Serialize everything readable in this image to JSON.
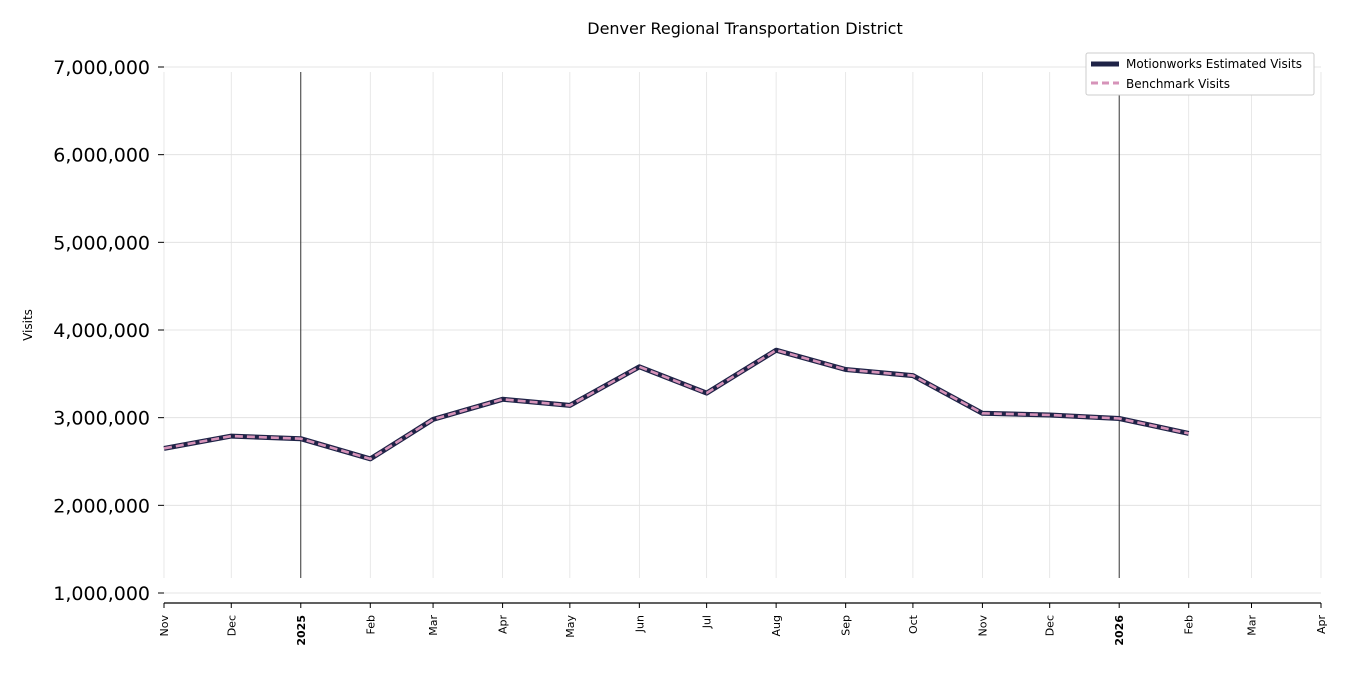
{
  "chart_data": {
    "type": "line",
    "title": "Denver Regional Transportation District",
    "ylabel": "Visits",
    "xlabel": "",
    "ylim": [
      1000000,
      7000000
    ],
    "yticks": [
      "1,000,000",
      "2,000,000",
      "3,000,000",
      "4,000,000",
      "5,000,000",
      "6,000,000",
      "7,000,000"
    ],
    "ytick_values": [
      1000000,
      2000000,
      3000000,
      4000000,
      5000000,
      6000000,
      7000000
    ],
    "xticks": [
      "Nov",
      "Dec",
      "2025",
      "Feb",
      "Mar",
      "Apr",
      "May",
      "Jun",
      "Jul",
      "Aug",
      "Sep",
      "Oct",
      "Nov",
      "Dec",
      "2026",
      "Feb",
      "Mar",
      "Apr"
    ],
    "xtick_dates": [
      "2024-11-01",
      "2024-12-01",
      "2025-01-01",
      "2025-02-01",
      "2025-03-01",
      "2025-04-01",
      "2025-05-01",
      "2025-06-01",
      "2025-07-01",
      "2025-08-01",
      "2025-09-01",
      "2025-10-01",
      "2025-11-01",
      "2025-12-01",
      "2026-01-01",
      "2026-02-01",
      "2026-03-01",
      "2026-04-01"
    ],
    "year_markers": [
      "2025-01-01",
      "2026-01-01"
    ],
    "grid": true,
    "legend_position": "top-right",
    "x": [
      "2024-11-01",
      "2024-12-01",
      "2025-01-01",
      "2025-02-01",
      "2025-03-01",
      "2025-04-01",
      "2025-05-01",
      "2025-06-01",
      "2025-07-01",
      "2025-08-01",
      "2025-09-01",
      "2025-10-01",
      "2025-11-01",
      "2025-12-01",
      "2026-01-01",
      "2026-02-01"
    ],
    "series": [
      {
        "name": "Motionworks Estimated Visits",
        "color": "#1f2347",
        "style": "solid",
        "values": [
          2650000,
          2790000,
          2760000,
          2530000,
          2980000,
          3210000,
          3140000,
          3580000,
          3280000,
          3770000,
          3550000,
          3480000,
          3050000,
          3030000,
          2990000,
          2820000
        ]
      },
      {
        "name": "Benchmark Visits",
        "color": "#d693b9",
        "style": "dashed",
        "values": [
          2650000,
          2790000,
          2760000,
          2530000,
          2980000,
          3210000,
          3140000,
          3580000,
          3280000,
          3770000,
          3550000,
          3480000,
          3050000,
          3030000,
          2990000,
          2820000
        ]
      }
    ]
  }
}
